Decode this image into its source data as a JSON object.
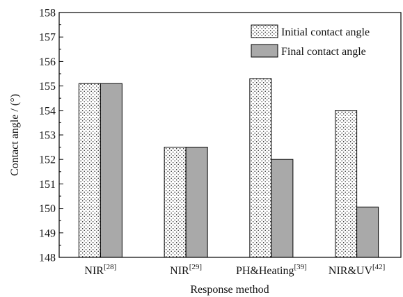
{
  "chart_data": {
    "type": "bar",
    "ylabel": "Contact angle / (°)",
    "xlabel": "Response method",
    "ylim": [
      148,
      158
    ],
    "yticks": [
      148,
      149,
      150,
      151,
      152,
      153,
      154,
      155,
      156,
      157,
      158
    ],
    "categories": [
      {
        "label": "NIR",
        "ref": "[28]"
      },
      {
        "label": "NIR",
        "ref": "[29]"
      },
      {
        "label": "PH&Heating",
        "ref": "[39]"
      },
      {
        "label": "NIR&UV",
        "ref": "[42]"
      }
    ],
    "series": [
      {
        "name": "Initial contact angle",
        "pattern": "dotted",
        "color": "#ffffff",
        "values": [
          155.1,
          152.5,
          155.3,
          154.0
        ]
      },
      {
        "name": "Final contact angle",
        "pattern": "solid",
        "color": "#a9a9a9",
        "values": [
          155.1,
          152.5,
          152.0,
          150.05
        ]
      }
    ],
    "legend": "top-right",
    "grid": false
  }
}
